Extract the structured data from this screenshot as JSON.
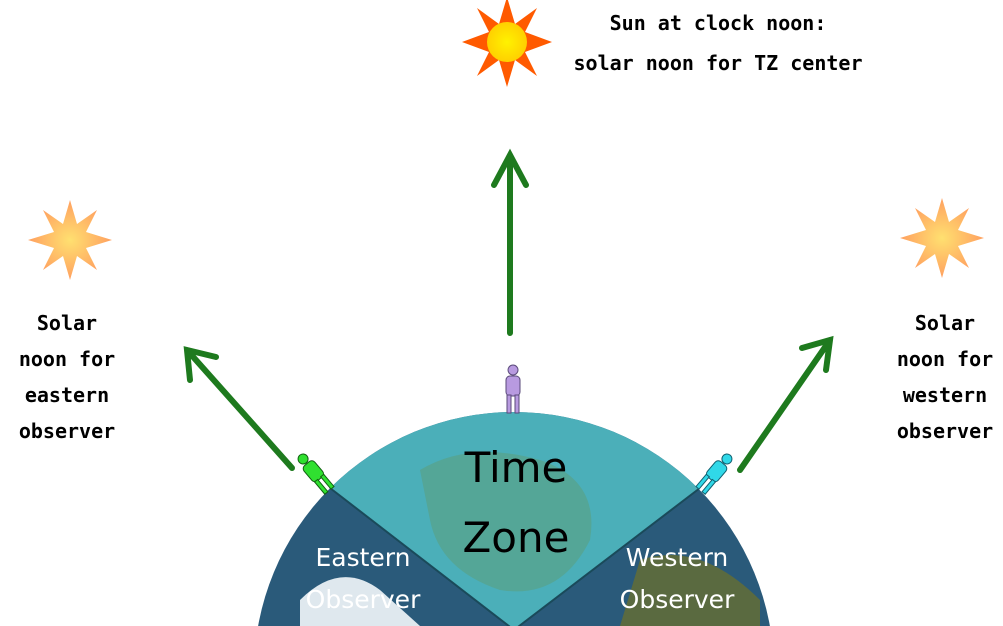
{
  "top_caption": [
    "Sun at clock noon:",
    "solar noon for TZ center"
  ],
  "east_caption": [
    "Solar",
    "noon for",
    "eastern",
    "observer"
  ],
  "west_caption": [
    "Solar",
    "noon for",
    "western",
    "observer"
  ],
  "zone_label": [
    "Time",
    "Zone"
  ],
  "east_label": [
    "Eastern",
    "Observer"
  ],
  "west_label": [
    "Western",
    "Observer"
  ]
}
